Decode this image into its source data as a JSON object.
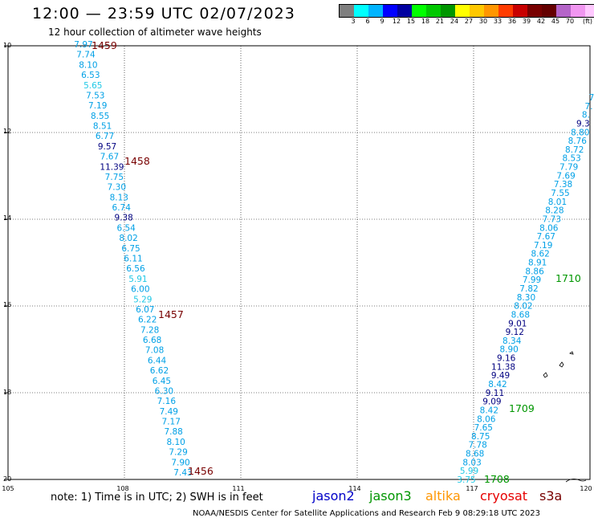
{
  "title": "12:00 — 23:59 UTC 02/07/2023",
  "subtitle": "12 hour collection of altimeter wave heights",
  "colorbar": {
    "colors": [
      "#7f7f7f",
      "#00ffff",
      "#00b4ff",
      "#0000ff",
      "#0000a0",
      "#00ff00",
      "#00c800",
      "#009600",
      "#ffff00",
      "#ffc800",
      "#ff9600",
      "#ff3c00",
      "#c80000",
      "#780000",
      "#640000",
      "#b464c8",
      "#f096f0",
      "#ffc8ff"
    ],
    "labels": [
      "3",
      "6",
      "9",
      "12",
      "15",
      "18",
      "21",
      "24",
      "27",
      "30",
      "33",
      "36",
      "39",
      "42",
      "45",
      "70",
      "(ft)"
    ]
  },
  "lat_labels": [
    "10",
    "12",
    "14",
    "16",
    "18",
    "20"
  ],
  "lon_labels": [
    "105",
    "108",
    "111",
    "114",
    "117",
    "120"
  ],
  "note": "note: 1) Time is in UTC; 2) SWH is in feet",
  "satellites": [
    {
      "name": "jason2",
      "color": "#0000c8"
    },
    {
      "name": "jason3",
      "color": "#009600"
    },
    {
      "name": "altika",
      "color": "#ff9600"
    },
    {
      "name": "cryosat",
      "color": "#e60000"
    },
    {
      "name": "s3a",
      "color": "#780000"
    }
  ],
  "credit": "NOAA/NESDIS Center for Satellite Applications and Research    Feb  9 08:29:18 UTC 2023",
  "track_west": {
    "lon": [
      106.8,
      106.9,
      106.9,
      107.0,
      107.0,
      107.1,
      107.1,
      107.2,
      107.2,
      107.3,
      107.3,
      107.4,
      107.4,
      107.5,
      107.5,
      107.6,
      107.6,
      107.7,
      107.7,
      107.8,
      107.8,
      107.9,
      107.9,
      108.0,
      108.0,
      108.1,
      108.1,
      108.2,
      108.2,
      108.3,
      108.3,
      108.4,
      108.4,
      108.5,
      108.5,
      108.6,
      108.6,
      108.7,
      108.7,
      108.8,
      108.8,
      108.9,
      108.9,
      109.0,
      109.0,
      109.1,
      109.1,
      109.2,
      109.2,
      109.3
    ],
    "lat": [
      10.0,
      10.2,
      10.4,
      10.6,
      10.8,
      11.0,
      11.2,
      11.4,
      11.6,
      11.8,
      12.0,
      12.2,
      12.4,
      12.6,
      12.8,
      13.0,
      13.2,
      13.4,
      13.6,
      13.8,
      14.0,
      14.2,
      14.4,
      14.6,
      14.8,
      15.0,
      15.2,
      15.4,
      15.6,
      15.8,
      16.0,
      16.2,
      16.4,
      16.6,
      16.8,
      17.0,
      17.2,
      17.4,
      17.6,
      17.8,
      18.0,
      18.2,
      18.4,
      18.6,
      18.8,
      19.0,
      19.2,
      19.4,
      19.6,
      19.8
    ],
    "values": [
      "7.97",
      "7.74",
      "8.10",
      "6.53",
      "5.65",
      "7.53",
      "7.19",
      "8.55",
      "8.51",
      "6.77",
      "9.57",
      "7.67",
      "11.39",
      "7.75",
      "7.30",
      "8.13",
      "6.74",
      "9.38",
      "6.54",
      "8.02",
      "6.75",
      "6.11",
      "6.56",
      "5.91",
      "6.00",
      "5.29",
      "6.07",
      "6.22",
      "7.28",
      "6.68",
      "7.08",
      "6.44",
      "6.62",
      "6.45",
      "6.30",
      "7.16",
      "7.49",
      "7.17",
      "7.88",
      "8.10",
      "7.29",
      "7.90",
      "7.43"
    ]
  },
  "track_east": {
    "values": [
      "3.75",
      "5.99",
      "8.03",
      "8.68",
      "7.78",
      "8.75",
      "7.65",
      "8.06",
      "8.42",
      "9.09",
      "9.11",
      "8.42",
      "9.49",
      "11.38",
      "9.16",
      "8.90",
      "8.34",
      "9.12",
      "9.01",
      "8.68",
      "8.02",
      "8.30",
      "7.82",
      "7.99",
      "8.86",
      "8.91",
      "8.62",
      "7.19",
      "7.67",
      "8.06",
      "7.73",
      "8.28",
      "8.01",
      "7.55",
      "7.38",
      "7.69",
      "7.79",
      "8.53",
      "8.72",
      "8.76",
      "8.80",
      "9.3",
      "8.",
      "7.",
      "7"
    ]
  },
  "pass_labels": [
    {
      "text": "1459",
      "color": "#780000"
    },
    {
      "text": "1458",
      "color": "#780000"
    },
    {
      "text": "1457",
      "color": "#780000"
    },
    {
      "text": "1456",
      "color": "#780000"
    },
    {
      "text": "1710",
      "color": "#009600"
    },
    {
      "text": "1709",
      "color": "#009600"
    },
    {
      "text": "1708",
      "color": "#009600"
    }
  ]
}
